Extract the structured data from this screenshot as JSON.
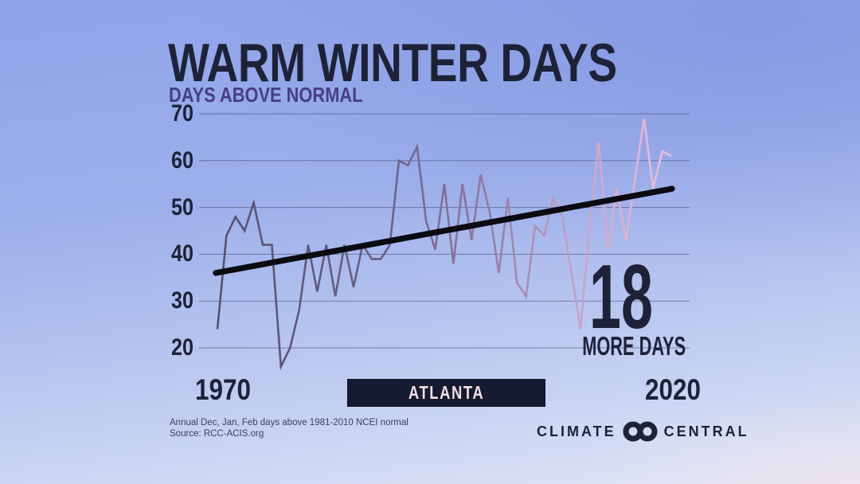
{
  "chart_data": {
    "type": "line",
    "title": "WARM WINTER DAYS",
    "subtitle": "DAYS ABOVE NORMAL",
    "x": [
      1970,
      1971,
      1972,
      1973,
      1974,
      1975,
      1976,
      1977,
      1978,
      1979,
      1980,
      1981,
      1982,
      1983,
      1984,
      1985,
      1986,
      1987,
      1988,
      1989,
      1990,
      1991,
      1992,
      1993,
      1994,
      1995,
      1996,
      1997,
      1998,
      1999,
      2000,
      2001,
      2002,
      2003,
      2004,
      2005,
      2006,
      2007,
      2008,
      2009,
      2010,
      2011,
      2012,
      2013,
      2014,
      2015,
      2016,
      2017,
      2018,
      2019,
      2020
    ],
    "series": [
      {
        "name": "Warm winter days above normal",
        "values": [
          24,
          44,
          48,
          45,
          51,
          42,
          42,
          16,
          20,
          28,
          42,
          32,
          42,
          31,
          42,
          33,
          42,
          39,
          39,
          42,
          60,
          59,
          63,
          47,
          41,
          55,
          38,
          55,
          43,
          57,
          49,
          36,
          52,
          34,
          31,
          46,
          44,
          52,
          48,
          36,
          24,
          46,
          64,
          41,
          54,
          43,
          56,
          69,
          54,
          62,
          61
        ]
      }
    ],
    "trend_line": {
      "start_value": 36,
      "end_value": 54,
      "change_days": 18
    },
    "yticks": [
      20,
      30,
      40,
      50,
      60,
      70
    ],
    "xticks": [
      "1970",
      "2020"
    ],
    "ylim": [
      20,
      70
    ],
    "grid": "horizontal",
    "legend": "none"
  },
  "annotation": {
    "value": "18",
    "label": "MORE DAYS"
  },
  "location_badge": {
    "label": "ATLANTA"
  },
  "footer": {
    "note_line1": "Annual Dec, Jan, Feb days above 1981-2010 NCEI normal",
    "note_line2": "Source: RCC-ACIS.org",
    "logo_left": "CLIMATE",
    "logo_right": "CENTRAL"
  },
  "colors": {
    "background_top": "#8fa3e8",
    "background_bottom": "#e2e6f6",
    "ink": "#1d2238",
    "accent_subtitle": "#473e85",
    "grid": "#454c70",
    "trend": "#0b0b12",
    "line_gradient": [
      "#57506e",
      "#6a6189",
      "#8d7aa0",
      "#c2a0c6",
      "#eec0dd"
    ],
    "badge_bg": "#151b30",
    "badge_text": "#f4dde6",
    "footnote": "#3a4158"
  }
}
